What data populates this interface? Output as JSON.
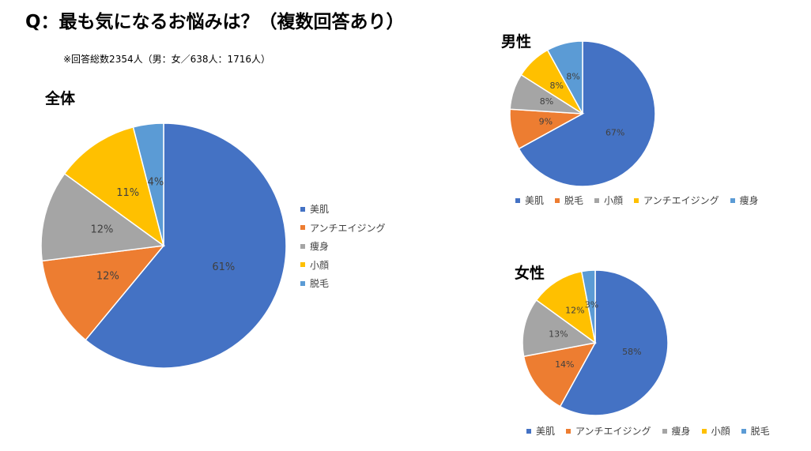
{
  "page": {
    "title": "Q：最も気になるお悩みは？（複数回答あり）",
    "subtitle": "※回答総数2354人（男：女／638人：1716人）"
  },
  "chart_data": [
    {
      "type": "pie",
      "title": "全体",
      "legend_position": "right",
      "categories": [
        "美肌",
        "アンチエイジング",
        "痩身",
        "小顔",
        "脱毛"
      ],
      "values": [
        61,
        12,
        12,
        11,
        4
      ],
      "labels": [
        "61%",
        "12%",
        "12%",
        "11%",
        "4%"
      ],
      "colors": [
        "#4472C4",
        "#ED7D31",
        "#A5A5A5",
        "#FFC000",
        "#5B9BD5"
      ]
    },
    {
      "type": "pie",
      "title": "男性",
      "legend_position": "bottom",
      "categories": [
        "美肌",
        "脱毛",
        "小顔",
        "アンチエイジング",
        "痩身"
      ],
      "values": [
        67,
        9,
        8,
        8,
        8
      ],
      "labels": [
        "67%",
        "9%",
        "8%",
        "8%",
        "8%"
      ],
      "colors": [
        "#4472C4",
        "#ED7D31",
        "#A5A5A5",
        "#FFC000",
        "#5B9BD5"
      ]
    },
    {
      "type": "pie",
      "title": "女性",
      "legend_position": "bottom",
      "categories": [
        "美肌",
        "アンチエイジング",
        "痩身",
        "小顔",
        "脱毛"
      ],
      "values": [
        58,
        14,
        13,
        12,
        3
      ],
      "labels": [
        "58%",
        "14%",
        "13%",
        "12%",
        "3%"
      ],
      "colors": [
        "#4472C4",
        "#ED7D31",
        "#A5A5A5",
        "#FFC000",
        "#5B9BD5"
      ]
    }
  ]
}
